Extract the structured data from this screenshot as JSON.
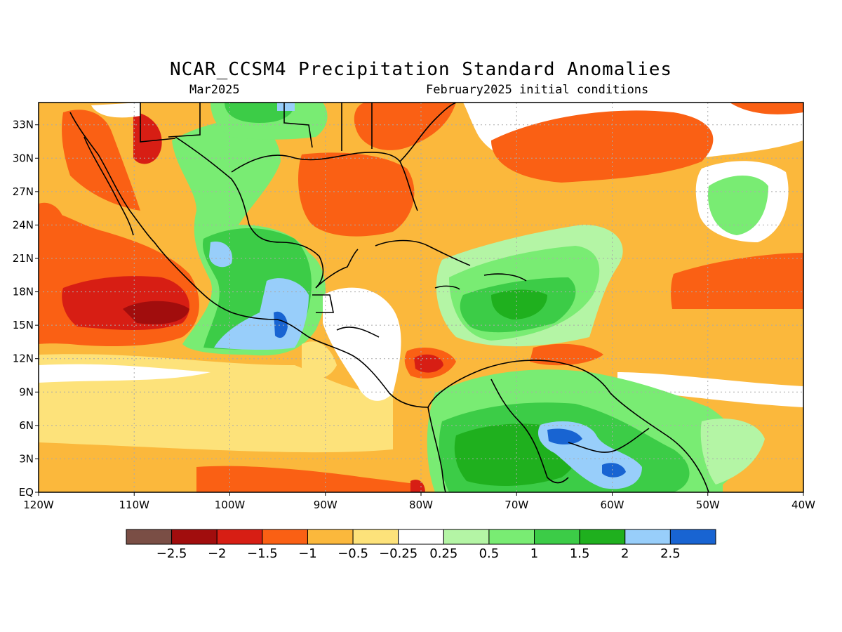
{
  "title": "NCAR_CCSM4 Precipitation Standard Anomalies",
  "subtitle_left": "Mar2025",
  "subtitle_right": "February2025 initial conditions",
  "lat_labels": [
    "33N",
    "30N",
    "27N",
    "24N",
    "21N",
    "18N",
    "15N",
    "12N",
    "9N",
    "6N",
    "3N",
    "EQ"
  ],
  "lon_labels": [
    "120W",
    "110W",
    "100W",
    "90W",
    "80W",
    "70W",
    "60W",
    "50W",
    "40W"
  ],
  "colorbar": {
    "colors": [
      "#7a4e45",
      "#a10d0d",
      "#d71e14",
      "#fa6014",
      "#fbb83c",
      "#fde27a",
      "#ffffff",
      "#b4f5a5",
      "#79ec73",
      "#3ccc47",
      "#1fb01e",
      "#98cefa",
      "#1864d2"
    ],
    "labels": [
      "−2.5",
      "−2",
      "−1.5",
      "−1",
      "−0.5",
      "−0.25",
      "0.25",
      "0.5",
      "1",
      "1.5",
      "2",
      "2.5"
    ]
  }
}
